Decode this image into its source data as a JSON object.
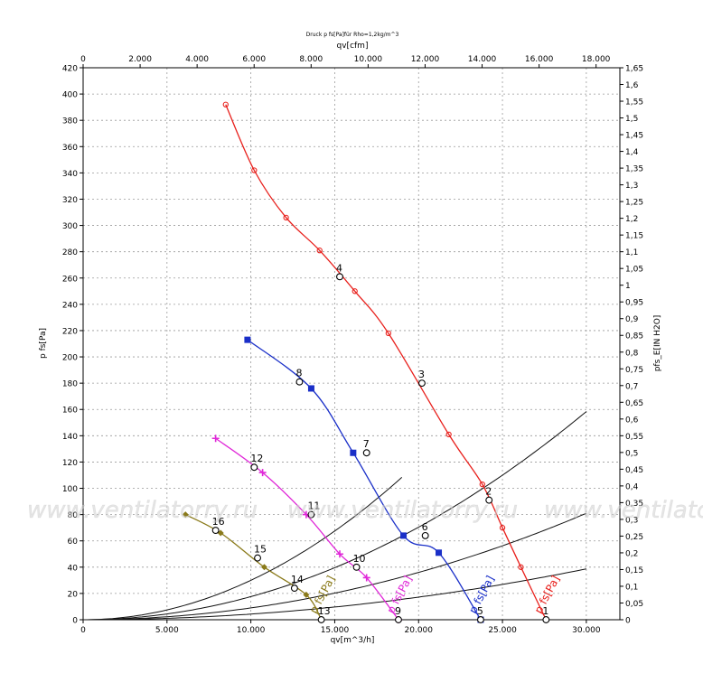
{
  "chart_data": {
    "type": "line",
    "subtitle": "Druck p fs[Pa]für Rho=1,2kg/m^3",
    "xlabel": "qv[m^3/h]",
    "xlabel_top": "qv[cfm]",
    "ylabel": "p fs[Pa]",
    "ylabel_right": "pfs_E[IN H2O]",
    "xlim": [
      0,
      32000
    ],
    "ylim": [
      0,
      420
    ],
    "ylim_right": [
      0,
      1.65
    ],
    "grid": true,
    "x_ticks": [
      {
        "v": 0,
        "label": "0"
      },
      {
        "v": 5000,
        "label": "5.000"
      },
      {
        "v": 10000,
        "label": "10.000"
      },
      {
        "v": 15000,
        "label": "15.000"
      },
      {
        "v": 20000,
        "label": "20.000"
      },
      {
        "v": 25000,
        "label": "25.000"
      },
      {
        "v": 30000,
        "label": "30.000"
      }
    ],
    "x_top_ticks": [
      {
        "v": 0,
        "label": "0"
      },
      {
        "v": 2000,
        "label": "2.000"
      },
      {
        "v": 4000,
        "label": "4.000"
      },
      {
        "v": 6000,
        "label": "6.000"
      },
      {
        "v": 8000,
        "label": "8.000"
      },
      {
        "v": 10000,
        "label": "10.000"
      },
      {
        "v": 12000,
        "label": "12.000"
      },
      {
        "v": 14000,
        "label": "14.000"
      },
      {
        "v": 16000,
        "label": "16.000"
      },
      {
        "v": 18000,
        "label": "18.000"
      }
    ],
    "y_ticks": [
      "0",
      "20",
      "40",
      "60",
      "80",
      "100",
      "120",
      "140",
      "160",
      "180",
      "200",
      "220",
      "240",
      "260",
      "280",
      "300",
      "320",
      "340",
      "360",
      "380",
      "400",
      "420"
    ],
    "y_right_ticks": [
      "0",
      "0,05",
      "0,1",
      "0,15",
      "0,2",
      "0,25",
      "0,3",
      "0,35",
      "0,4",
      "0,45",
      "0,5",
      "0,55",
      "0,6",
      "0,65",
      "0,7",
      "0,75",
      "0,8",
      "0,85",
      "0,9",
      "0,95",
      "1",
      "1,05",
      "1,1",
      "1,15",
      "1,2",
      "1,25",
      "1,3",
      "1,35",
      "1,4",
      "1,45",
      "1,5",
      "1,55",
      "1,6",
      "1,65"
    ],
    "series": [
      {
        "label": "p fs[Pa]",
        "color": "#e8201c",
        "marker": "circle",
        "x": [
          8500,
          10200,
          12100,
          14100,
          16200,
          18200,
          21800,
          23800,
          25000,
          26100,
          27600
        ],
        "y": [
          392,
          342,
          306,
          281,
          250,
          218,
          141,
          103,
          70,
          40,
          0
        ]
      },
      {
        "label": "p fs[Pa]",
        "color": "#1a2fc8",
        "marker": "square",
        "x": [
          9800,
          13600,
          16100,
          19100,
          21200,
          23700
        ],
        "y": [
          213,
          176,
          127,
          64,
          51,
          0
        ]
      },
      {
        "label": "p fs[Pa]",
        "color": "#e028d8",
        "marker": "plus",
        "x": [
          7900,
          10700,
          13300,
          15300,
          16900,
          18800
        ],
        "y": [
          138,
          112,
          80,
          50,
          32,
          0
        ]
      },
      {
        "label": "p fs[Pa]",
        "color": "#8a7a1a",
        "marker": "diamond",
        "x": [
          6100,
          8200,
          10800,
          13300,
          14200
        ],
        "y": [
          80,
          66,
          40,
          19,
          0
        ]
      }
    ],
    "system_curves_k": [
      0.0003,
      0.000176,
      9e-05,
      4.3e-05
    ],
    "system_curves_xmax": [
      19000,
      30000,
      30000,
      30000
    ],
    "operating_points": [
      {
        "label": "1",
        "x": 27600,
        "y": 0
      },
      {
        "label": "2",
        "x": 24200,
        "y": 91
      },
      {
        "label": "3",
        "x": 20200,
        "y": 180
      },
      {
        "label": "4",
        "x": 15300,
        "y": 261
      },
      {
        "label": "5",
        "x": 23700,
        "y": 0
      },
      {
        "label": "6",
        "x": 20400,
        "y": 64
      },
      {
        "label": "7",
        "x": 16900,
        "y": 127
      },
      {
        "label": "8",
        "x": 12900,
        "y": 181
      },
      {
        "label": "9",
        "x": 18800,
        "y": 0
      },
      {
        "label": "10",
        "x": 16300,
        "y": 40
      },
      {
        "label": "11",
        "x": 13600,
        "y": 80
      },
      {
        "label": "12",
        "x": 10200,
        "y": 116
      },
      {
        "label": "13",
        "x": 14200,
        "y": 0
      },
      {
        "label": "14",
        "x": 12600,
        "y": 24
      },
      {
        "label": "15",
        "x": 10400,
        "y": 47
      },
      {
        "label": "16",
        "x": 7900,
        "y": 68
      }
    ]
  },
  "watermark": "www.ventilatorry.ru"
}
